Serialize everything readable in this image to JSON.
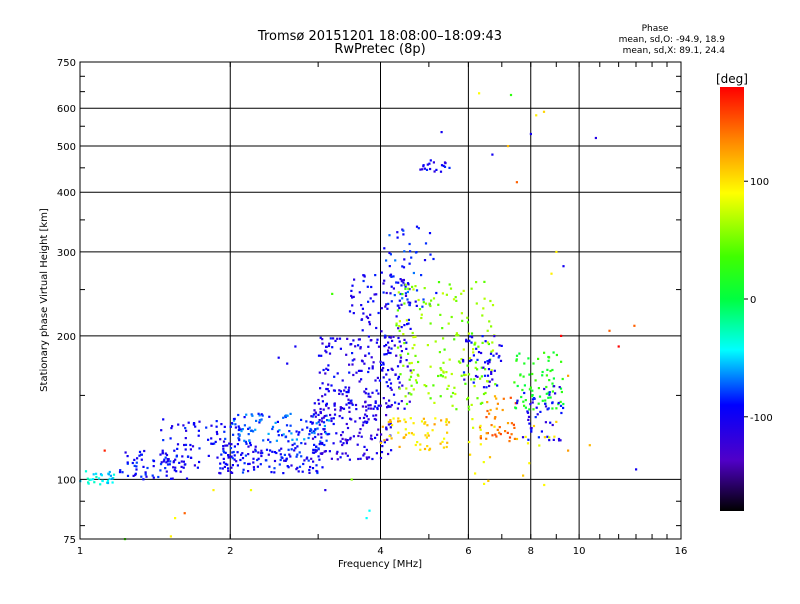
{
  "chart_data": {
    "type": "scatter",
    "title": "Tromsø 20151201 18:08:00–18:09:43",
    "subtitle": "RwPretec (8p)",
    "xlabel": "Frequency [MHz]",
    "ylabel": "Stationary phase Virtual Height [km]",
    "x_scale": "log",
    "y_scale": "log",
    "xlim": [
      1,
      16
    ],
    "ylim": [
      75,
      750
    ],
    "x_ticks": [
      1,
      2,
      4,
      6,
      8,
      10,
      16
    ],
    "y_ticks": [
      75,
      100,
      200,
      300,
      400,
      500,
      600,
      750
    ],
    "grid": true,
    "phase_stats": {
      "heading": "Phase",
      "line_o": "mean, sd,O: -94.9, 18.9",
      "line_x": "mean, sd,X:  89.1, 24.4"
    },
    "colorbar": {
      "unit": "[deg]",
      "range": [
        -180,
        180
      ],
      "ticks": [
        100,
        0,
        -100
      ],
      "colormap": "rainbow"
    },
    "clusters": [
      {
        "x": [
          1.0,
          1.17
        ],
        "y": [
          97,
          105
        ],
        "phase": -40,
        "n": 30
      },
      {
        "x": [
          1.2,
          1.65
        ],
        "y": [
          100,
          115
        ],
        "phase": -95,
        "n": 70
      },
      {
        "x": [
          1.45,
          2.1
        ],
        "y": [
          105,
          135
        ],
        "phase": -95,
        "n": 90
      },
      {
        "x": [
          1.9,
          3.1
        ],
        "y": [
          103,
          120
        ],
        "phase": -95,
        "n": 140
      },
      {
        "x": [
          2.0,
          3.2
        ],
        "y": [
          120,
          138
        ],
        "phase": -75,
        "n": 110
      },
      {
        "x": [
          2.9,
          4.2
        ],
        "y": [
          110,
          145
        ],
        "phase": -110,
        "n": 150
      },
      {
        "x": [
          3.0,
          4.6
        ],
        "y": [
          140,
          200
        ],
        "phase": -105,
        "n": 200
      },
      {
        "x": [
          3.4,
          4.6
        ],
        "y": [
          200,
          270
        ],
        "phase": -100,
        "n": 80
      },
      {
        "x": [
          4.0,
          5.5
        ],
        "y": [
          115,
          135
        ],
        "phase": 110,
        "n": 60
      },
      {
        "x": [
          4.0,
          5.2
        ],
        "y": [
          230,
          340
        ],
        "phase": -85,
        "n": 50
      },
      {
        "x": [
          4.3,
          6.8
        ],
        "y": [
          140,
          260
        ],
        "phase": 60,
        "n": 180
      },
      {
        "x": [
          5.8,
          7.0
        ],
        "y": [
          155,
          200
        ],
        "phase": -100,
        "n": 50
      },
      {
        "x": [
          6.3,
          7.5
        ],
        "y": [
          120,
          150
        ],
        "phase": 140,
        "n": 40
      },
      {
        "x": [
          7.4,
          9.3
        ],
        "y": [
          140,
          185
        ],
        "phase": 20,
        "n": 70
      },
      {
        "x": [
          7.5,
          9.3
        ],
        "y": [
          120,
          160
        ],
        "phase": -100,
        "n": 50
      },
      {
        "x": [
          4.8,
          5.5
        ],
        "y": [
          440,
          470
        ],
        "phase": -100,
        "n": 20
      },
      {
        "x": [
          6.0,
          9.0
        ],
        "y": [
          95,
          135
        ],
        "phase": 100,
        "n": 25
      }
    ],
    "outliers": [
      {
        "x": 5.3,
        "y": 535,
        "phase": -100
      },
      {
        "x": 6.3,
        "y": 645,
        "phase": 95
      },
      {
        "x": 7.3,
        "y": 640,
        "phase": 30
      },
      {
        "x": 7.5,
        "y": 420,
        "phase": 150
      },
      {
        "x": 8.0,
        "y": 530,
        "phase": -100
      },
      {
        "x": 8.2,
        "y": 580,
        "phase": 100
      },
      {
        "x": 8.5,
        "y": 590,
        "phase": 110
      },
      {
        "x": 10.8,
        "y": 520,
        "phase": -110
      },
      {
        "x": 6.7,
        "y": 480,
        "phase": -100
      },
      {
        "x": 7.2,
        "y": 500,
        "phase": 120
      },
      {
        "x": 9.3,
        "y": 280,
        "phase": -100
      },
      {
        "x": 9.0,
        "y": 300,
        "phase": 100
      },
      {
        "x": 8.8,
        "y": 270,
        "phase": 100
      },
      {
        "x": 11.5,
        "y": 205,
        "phase": 150
      },
      {
        "x": 12.0,
        "y": 190,
        "phase": 180
      },
      {
        "x": 12.9,
        "y": 210,
        "phase": 150
      },
      {
        "x": 13.0,
        "y": 105,
        "phase": -100
      },
      {
        "x": 10.5,
        "y": 118,
        "phase": 120
      },
      {
        "x": 9.5,
        "y": 115,
        "phase": 130
      },
      {
        "x": 1.55,
        "y": 83,
        "phase": 95
      },
      {
        "x": 1.52,
        "y": 76,
        "phase": 100
      },
      {
        "x": 1.62,
        "y": 85,
        "phase": 150
      },
      {
        "x": 1.23,
        "y": 75,
        "phase": 40
      },
      {
        "x": 3.1,
        "y": 95,
        "phase": -110
      },
      {
        "x": 3.5,
        "y": 100,
        "phase": 60
      },
      {
        "x": 3.8,
        "y": 86,
        "phase": -40
      },
      {
        "x": 3.75,
        "y": 83,
        "phase": -40
      },
      {
        "x": 2.2,
        "y": 95,
        "phase": 90
      },
      {
        "x": 1.85,
        "y": 95,
        "phase": 100
      },
      {
        "x": 1.12,
        "y": 115,
        "phase": 170
      },
      {
        "x": 2.6,
        "y": 175,
        "phase": -100
      },
      {
        "x": 2.7,
        "y": 190,
        "phase": -100
      },
      {
        "x": 2.5,
        "y": 180,
        "phase": -100
      },
      {
        "x": 3.2,
        "y": 245,
        "phase": 40
      },
      {
        "x": 9.2,
        "y": 200,
        "phase": 180
      },
      {
        "x": 9.5,
        "y": 165,
        "phase": 130
      }
    ]
  }
}
